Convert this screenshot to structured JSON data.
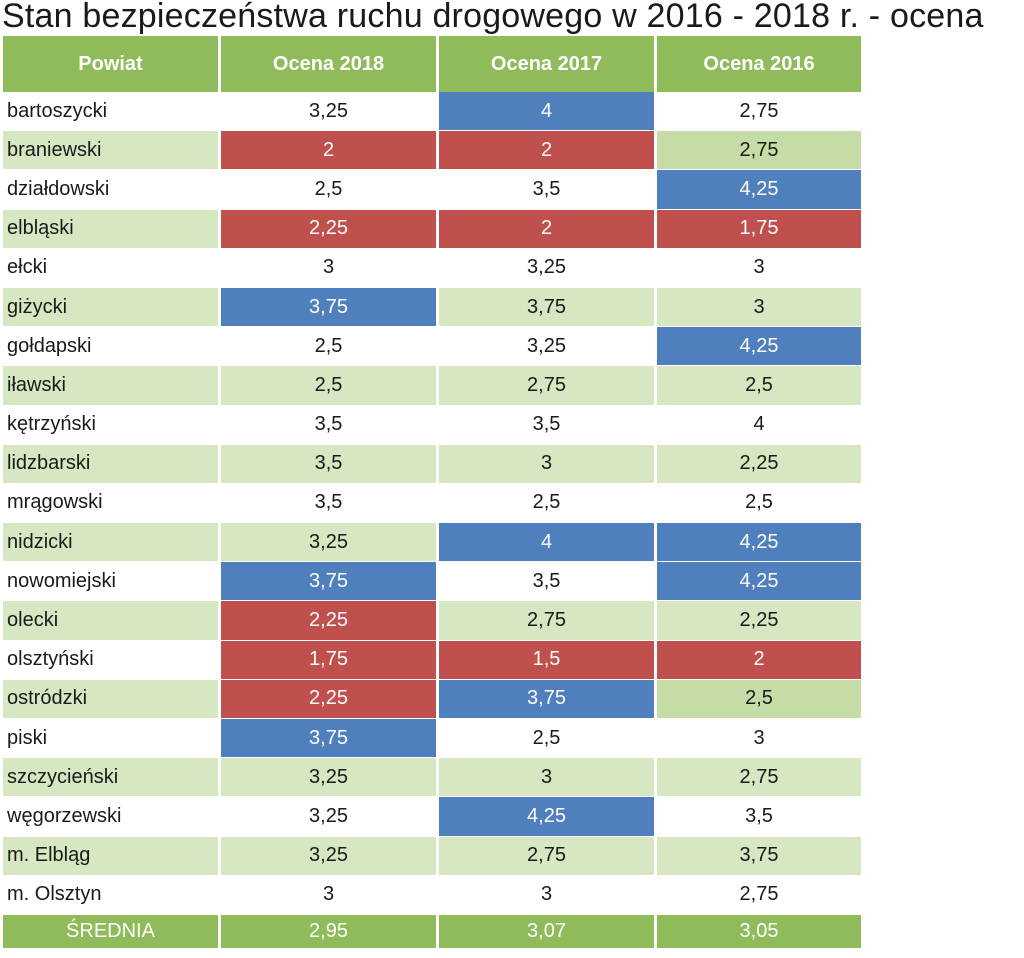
{
  "title": "Stan bezpieczeństwa ruchu drogowego w 2016 - 2018 r. - ocena",
  "headers": [
    "Powiat",
    "Ocena 2018",
    "Ocena 2017",
    "Ocena 2016"
  ],
  "colors": {
    "header_green": "#8fbb5a",
    "row_alt_green": "#d6e7c2",
    "highlight_blue": "#4f7fbd",
    "highlight_red": "#c0504d",
    "text": "#1a1a1a"
  },
  "rows": [
    {
      "name": "bartoszycki",
      "v2018": "3,25",
      "v2017": "4",
      "v2016": "2,75",
      "hl": [
        "",
        "blue",
        ""
      ]
    },
    {
      "name": "braniewski",
      "v2018": "2",
      "v2017": "2",
      "v2016": "2,75",
      "hl": [
        "red",
        "red",
        "green"
      ]
    },
    {
      "name": "działdowski",
      "v2018": "2,5",
      "v2017": "3,5",
      "v2016": "4,25",
      "hl": [
        "",
        "",
        "blue"
      ]
    },
    {
      "name": "elbląski",
      "v2018": "2,25",
      "v2017": "2",
      "v2016": "1,75",
      "hl": [
        "red",
        "red",
        "red"
      ]
    },
    {
      "name": "ełcki",
      "v2018": "3",
      "v2017": "3,25",
      "v2016": "3",
      "hl": [
        "",
        "",
        ""
      ]
    },
    {
      "name": "giżycki",
      "v2018": "3,75",
      "v2017": "3,75",
      "v2016": "3",
      "hl": [
        "blue",
        "",
        ""
      ]
    },
    {
      "name": "gołdapski",
      "v2018": "2,5",
      "v2017": "3,25",
      "v2016": "4,25",
      "hl": [
        "",
        "",
        "blue"
      ]
    },
    {
      "name": "iławski",
      "v2018": "2,5",
      "v2017": "2,75",
      "v2016": "2,5",
      "hl": [
        "",
        "",
        ""
      ]
    },
    {
      "name": "kętrzyński",
      "v2018": "3,5",
      "v2017": "3,5",
      "v2016": "4",
      "hl": [
        "",
        "",
        ""
      ]
    },
    {
      "name": "lidzbarski",
      "v2018": "3,5",
      "v2017": "3",
      "v2016": "2,25",
      "hl": [
        "",
        "",
        ""
      ]
    },
    {
      "name": "mrągowski",
      "v2018": "3,5",
      "v2017": "2,5",
      "v2016": "2,5",
      "hl": [
        "",
        "",
        ""
      ]
    },
    {
      "name": "nidzicki",
      "v2018": "3,25",
      "v2017": "4",
      "v2016": "4,25",
      "hl": [
        "",
        "blue",
        "blue"
      ]
    },
    {
      "name": "nowomiejski",
      "v2018": "3,75",
      "v2017": "3,5",
      "v2016": "4,25",
      "hl": [
        "blue",
        "",
        "blue"
      ]
    },
    {
      "name": "olecki",
      "v2018": "2,25",
      "v2017": "2,75",
      "v2016": "2,25",
      "hl": [
        "red",
        "",
        ""
      ]
    },
    {
      "name": "olsztyński",
      "v2018": "1,75",
      "v2017": "1,5",
      "v2016": "2",
      "hl": [
        "red",
        "red",
        "red"
      ]
    },
    {
      "name": "ostródzki",
      "v2018": "2,25",
      "v2017": "3,75",
      "v2016": "2,5",
      "hl": [
        "red",
        "blue",
        "green"
      ]
    },
    {
      "name": "piski",
      "v2018": "3,75",
      "v2017": "2,5",
      "v2016": "3",
      "hl": [
        "blue",
        "",
        ""
      ]
    },
    {
      "name": "szczycieński",
      "v2018": "3,25",
      "v2017": "3",
      "v2016": "2,75",
      "hl": [
        "",
        "",
        ""
      ]
    },
    {
      "name": "węgorzewski",
      "v2018": "3,25",
      "v2017": "4,25",
      "v2016": "3,5",
      "hl": [
        "",
        "blue",
        ""
      ]
    },
    {
      "name": "m. Elbląg",
      "v2018": "3,25",
      "v2017": "2,75",
      "v2016": "3,75",
      "hl": [
        "",
        "",
        ""
      ]
    },
    {
      "name": "m. Olsztyn",
      "v2018": "3",
      "v2017": "3",
      "v2016": "2,75",
      "hl": [
        "",
        "",
        ""
      ]
    }
  ],
  "average": {
    "label": "ŚREDNIA",
    "v2018": "2,95",
    "v2017": "3,07",
    "v2016": "3,05"
  }
}
